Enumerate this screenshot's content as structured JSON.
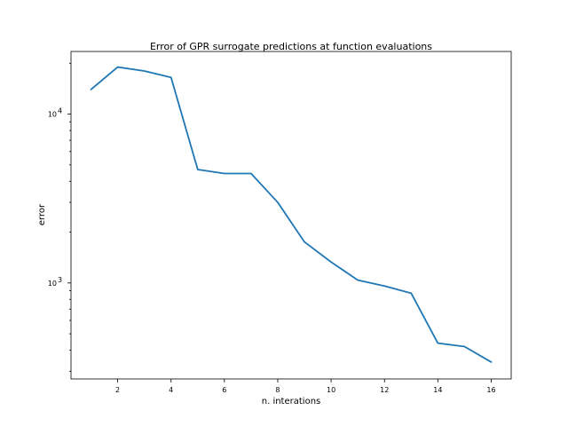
{
  "chart_data": {
    "type": "line",
    "title": "Error of GPR surrogate predictions at function evaluations",
    "xlabel": "n. interations",
    "ylabel": "error",
    "yscale": "log",
    "xlim": [
      0.25,
      16.75
    ],
    "ylim": [
      270,
      23500
    ],
    "grid": false,
    "x_ticks": [
      2,
      4,
      6,
      8,
      10,
      12,
      14,
      16
    ],
    "y_ticks": [
      {
        "value": 1000,
        "base": "10",
        "exp": "3"
      },
      {
        "value": 10000,
        "base": "10",
        "exp": "4"
      }
    ],
    "series": [
      {
        "color": "#1f77b4",
        "x": [
          1,
          2,
          3,
          4,
          5,
          6,
          7,
          8,
          9,
          10,
          11,
          12,
          13,
          14,
          15,
          16
        ],
        "values": [
          14000,
          19000,
          18000,
          16500,
          4700,
          4450,
          4450,
          3000,
          1750,
          1330,
          1040,
          960,
          870,
          440,
          420,
          340
        ]
      }
    ]
  }
}
